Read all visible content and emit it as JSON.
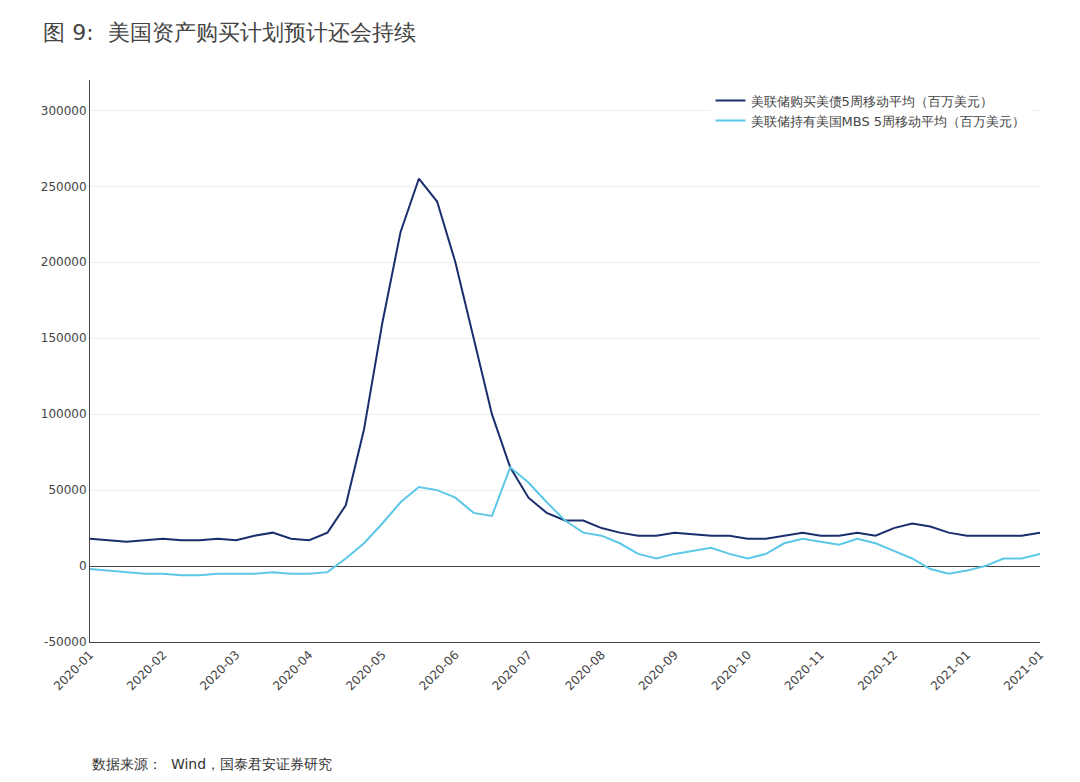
{
  "chart_data": {
    "type": "line",
    "title": "图 9:  美国资产购买计划预计还会持续",
    "annotations": [
      "数据来源：  Wind，国泰君安证券研究"
    ],
    "categories": [
      "2020-01",
      null,
      null,
      null,
      "2020-02",
      null,
      null,
      null,
      "2020-03",
      null,
      null,
      null,
      "2020-04",
      null,
      null,
      null,
      "2020-05",
      null,
      null,
      null,
      "2020-06",
      null,
      null,
      null,
      "2020-07",
      null,
      null,
      null,
      "2020-08",
      null,
      null,
      null,
      "2020-09",
      null,
      null,
      null,
      "2020-10",
      null,
      null,
      null,
      "2020-11",
      null,
      null,
      null,
      "2020-12",
      null,
      null,
      null,
      "2021-01",
      null,
      null,
      null,
      "2021-01"
    ],
    "series": [
      {
        "name": "美联储购买美债5周移动平均（百万美元）",
        "color": "#1a2e6e",
        "values": [
          18000,
          17000,
          16000,
          17000,
          18000,
          17000,
          17000,
          18000,
          17000,
          20000,
          22000,
          18000,
          17000,
          22000,
          40000,
          90000,
          160000,
          220000,
          255000,
          240000,
          200000,
          150000,
          100000,
          65000,
          45000,
          35000,
          30000,
          30000,
          25000,
          22000,
          20000,
          20000,
          22000,
          21000,
          20000,
          20000,
          18000,
          18000,
          20000,
          22000,
          20000,
          20000,
          22000,
          20000,
          25000,
          28000,
          26000,
          22000,
          20000,
          20000,
          20000,
          20000,
          22000
        ]
      },
      {
        "name": "美联储持有美国MBS 5周移动平均（百万美元）",
        "color": "#5bc8e8",
        "values": [
          -2000,
          -3000,
          -4000,
          -5000,
          -5000,
          -6000,
          -6000,
          -5000,
          -5000,
          -5000,
          -4000,
          -5000,
          -5000,
          -4000,
          5000,
          15000,
          28000,
          42000,
          52000,
          50000,
          45000,
          35000,
          33000,
          65000,
          55000,
          42000,
          30000,
          22000,
          20000,
          15000,
          8000,
          5000,
          8000,
          10000,
          12000,
          8000,
          5000,
          8000,
          15000,
          18000,
          16000,
          14000,
          18000,
          15000,
          10000,
          5000,
          -2000,
          -5000,
          -3000,
          0,
          5000,
          5000,
          8000
        ]
      }
    ],
    "ylim": [
      -50000,
      320000
    ],
    "yticks": [
      -50000,
      0,
      50000,
      100000,
      150000,
      200000,
      250000,
      300000
    ],
    "grid": true,
    "legend": "upper right"
  }
}
